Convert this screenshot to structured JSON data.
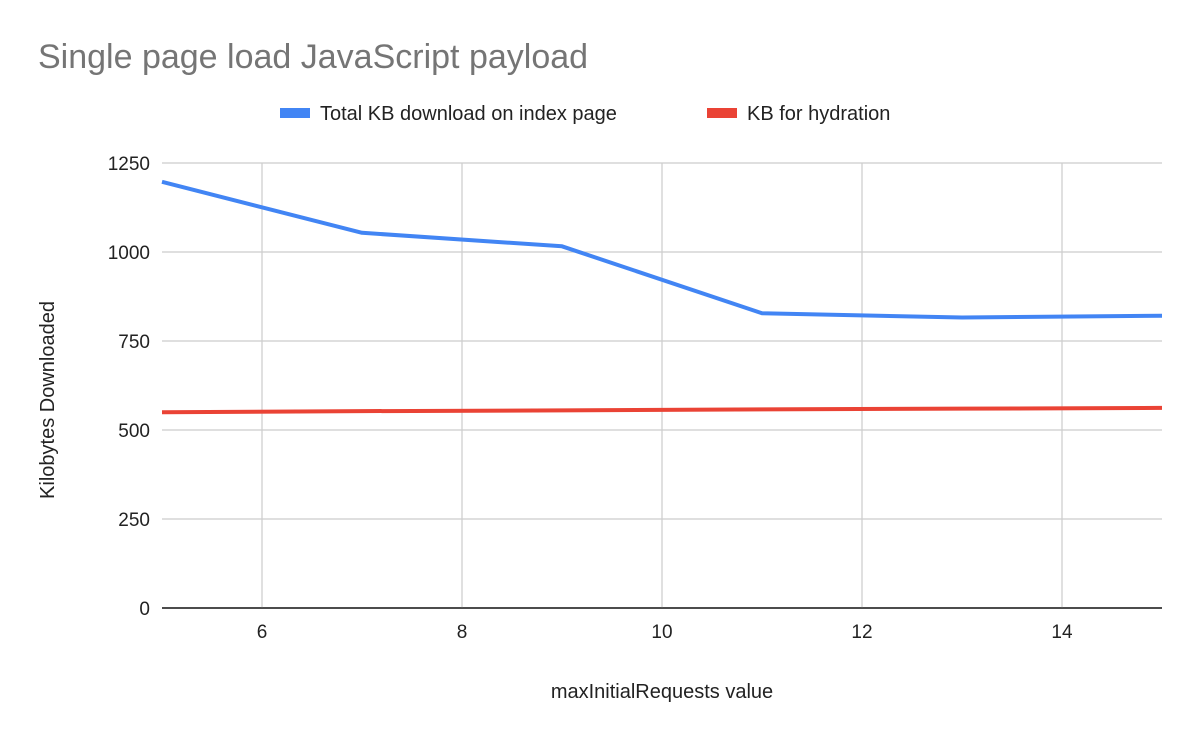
{
  "chart_data": {
    "type": "line",
    "title": "Single page load JavaScript payload",
    "xlabel": "maxInitialRequests value",
    "ylabel": "Kilobytes Downloaded",
    "xlim": [
      5,
      15
    ],
    "ylim": [
      0,
      1250
    ],
    "xticks": [
      6,
      8,
      10,
      12,
      14
    ],
    "yticks": [
      0,
      250,
      500,
      750,
      1000,
      1250
    ],
    "grid": true,
    "legend_position": "top",
    "x": [
      5,
      7,
      9,
      11,
      13,
      15
    ],
    "series": [
      {
        "name": "Total KB download on index page",
        "color": "#4285f4",
        "values": [
          1197,
          1054,
          1016,
          828,
          816,
          821
        ]
      },
      {
        "name": "KB for hydration",
        "color": "#ea4335",
        "values": [
          550,
          553,
          555,
          558,
          560,
          562
        ]
      }
    ]
  }
}
